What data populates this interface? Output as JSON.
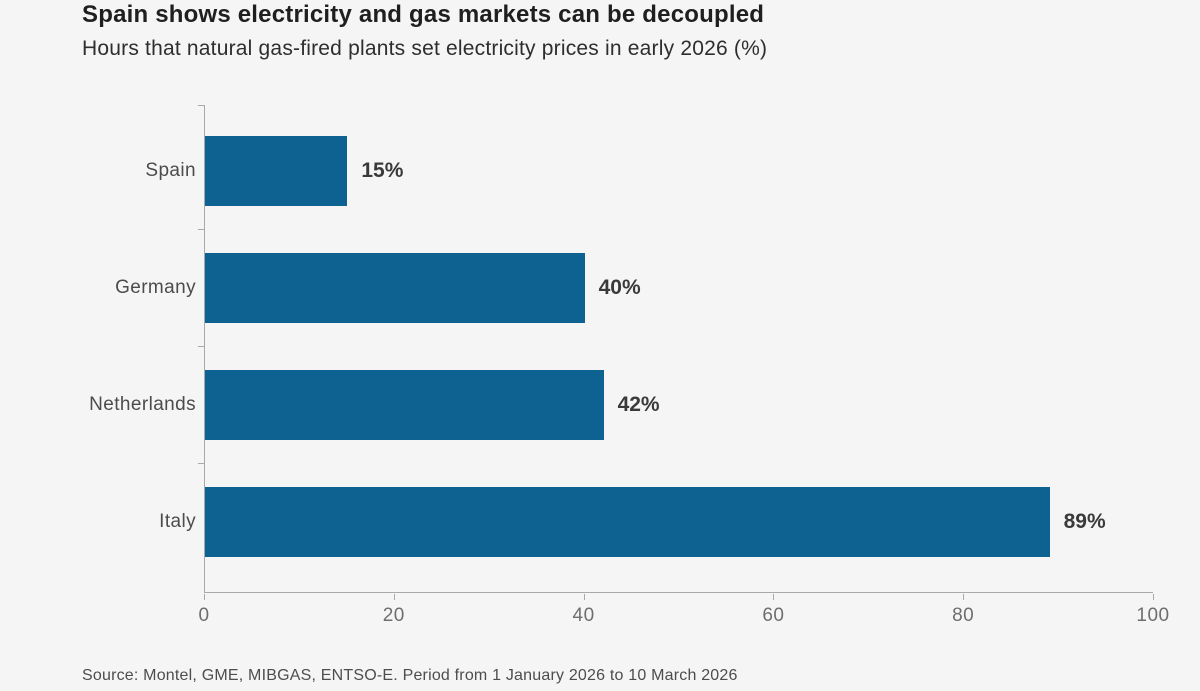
{
  "header": {
    "title": "Spain shows electricity and gas markets can be decoupled",
    "subtitle": "Hours that natural gas-fired plants set electricity prices in early 2026 (%)"
  },
  "chart_data": {
    "type": "bar",
    "orientation": "horizontal",
    "title": "Spain shows electricity and gas markets can be decoupled",
    "subtitle": "Hours that natural gas-fired plants set electricity prices in early 2026 (%)",
    "categories": [
      "Spain",
      "Germany",
      "Netherlands",
      "Italy"
    ],
    "values": [
      15,
      40,
      42,
      89
    ],
    "value_labels": [
      "15%",
      "40%",
      "42%",
      "89%"
    ],
    "xlabel": "",
    "ylabel": "",
    "xlim": [
      0,
      100
    ],
    "xticks": [
      0,
      20,
      40,
      60,
      80,
      100
    ],
    "grid": false,
    "legend": false,
    "bar_color": "#0d6291",
    "axis_color": "#a9a9a9",
    "background_color": "#f5f5f6"
  },
  "footer": {
    "source": "Source: Montel, GME, MIBGAS, ENTSO-E. Period from 1 January 2026 to 10 March 2026"
  }
}
